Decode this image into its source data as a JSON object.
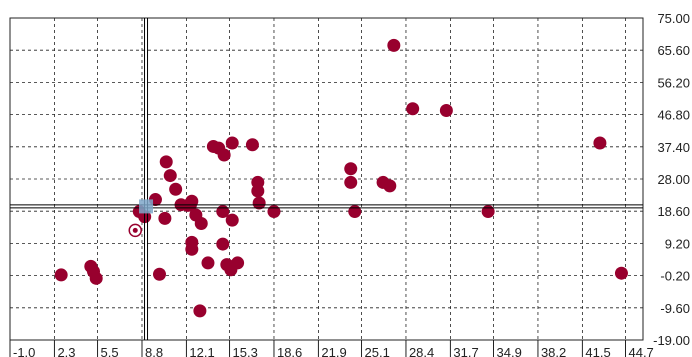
{
  "chart_data": {
    "type": "scatter",
    "title": "",
    "xlabel": "",
    "ylabel": "",
    "xlim": [
      -1.0,
      46.0
    ],
    "ylim": [
      -19.0,
      75.0
    ],
    "x_ticks": [
      "-1.0",
      "2.3",
      "5.5",
      "8.8",
      "12.1",
      "15.3",
      "18.6",
      "21.9",
      "25.1",
      "28.4",
      "31.7",
      "34.9",
      "38.2",
      "41.5",
      "44.7"
    ],
    "y_ticks": [
      "75.00",
      "65.60",
      "56.20",
      "46.80",
      "37.40",
      "28.00",
      "18.60",
      "9.20",
      "-0.20",
      "-9.60",
      "-19.00"
    ],
    "grid": true,
    "y_axis_side": "right",
    "point_color": "#98002e",
    "series": [
      {
        "points": [
          [
            2.8,
            0.0
          ],
          [
            5.0,
            2.5
          ],
          [
            5.2,
            1.0
          ],
          [
            5.4,
            -1.0
          ],
          [
            8.6,
            18.5
          ],
          [
            9.0,
            17.0
          ],
          [
            9.8,
            22.0
          ],
          [
            10.1,
            0.2
          ],
          [
            10.5,
            16.5
          ],
          [
            10.6,
            33.0
          ],
          [
            10.9,
            29.0
          ],
          [
            11.3,
            25.0
          ],
          [
            11.7,
            20.5
          ],
          [
            12.2,
            20.3
          ],
          [
            12.4,
            20.5
          ],
          [
            12.5,
            21.5
          ],
          [
            12.5,
            9.5
          ],
          [
            12.5,
            7.5
          ],
          [
            12.8,
            17.5
          ],
          [
            13.1,
            -10.5
          ],
          [
            13.2,
            15.0
          ],
          [
            13.7,
            3.5
          ],
          [
            14.1,
            37.5
          ],
          [
            14.5,
            37.0
          ],
          [
            14.8,
            18.5
          ],
          [
            14.8,
            9.0
          ],
          [
            14.9,
            35.0
          ],
          [
            15.1,
            3.0
          ],
          [
            15.4,
            1.5
          ],
          [
            15.5,
            16.0
          ],
          [
            15.5,
            38.5
          ],
          [
            15.9,
            3.5
          ],
          [
            17.0,
            38.0
          ],
          [
            17.4,
            27.0
          ],
          [
            17.4,
            24.5
          ],
          [
            17.5,
            21.0
          ],
          [
            18.6,
            18.5
          ],
          [
            24.3,
            31.0
          ],
          [
            24.3,
            27.0
          ],
          [
            24.6,
            18.5
          ],
          [
            26.7,
            27.0
          ],
          [
            27.2,
            26.0
          ],
          [
            27.5,
            67.0
          ],
          [
            28.9,
            48.5
          ],
          [
            31.4,
            48.0
          ],
          [
            34.5,
            18.5
          ],
          [
            42.8,
            38.5
          ],
          [
            44.4,
            0.5
          ]
        ]
      }
    ],
    "crosshair": {
      "x": 9.1,
      "y": 20.0
    },
    "selected_point": {
      "x": 8.3,
      "y": 13.0
    }
  }
}
